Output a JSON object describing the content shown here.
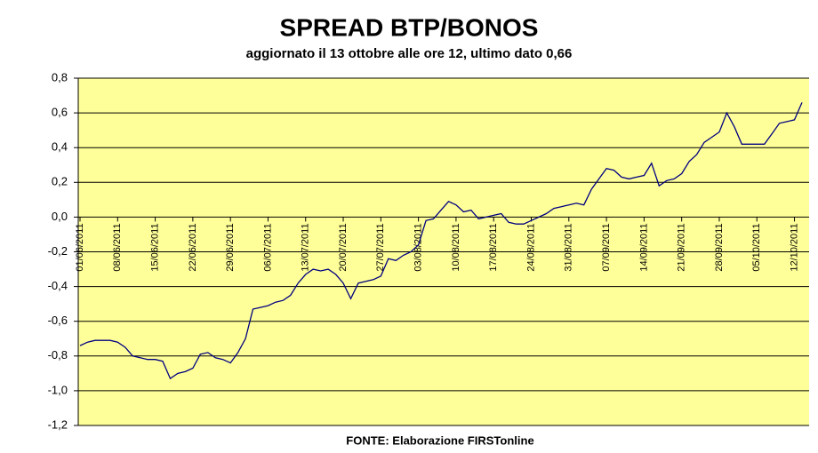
{
  "chart_data": {
    "type": "line",
    "title": "SPREAD BTP/BONOS",
    "subtitle": "aggiornato il 13 ottobre alle ore 12, ultimo dato 0,66",
    "source": "FONTE: Elaborazione FIRSTonline",
    "categories": [
      "01/06/2011",
      null,
      null,
      null,
      null,
      "08/06/2011",
      null,
      null,
      null,
      null,
      "15/06/2011",
      null,
      null,
      null,
      null,
      "22/06/2011",
      null,
      null,
      null,
      null,
      "29/06/2011",
      null,
      null,
      null,
      null,
      "06/07/2011",
      null,
      null,
      null,
      null,
      "13/07/2011",
      null,
      null,
      null,
      null,
      "20/07/2011",
      null,
      null,
      null,
      null,
      "27/07/2011",
      null,
      null,
      null,
      null,
      "03/08/2011",
      null,
      null,
      null,
      null,
      "10/08/2011",
      null,
      null,
      null,
      null,
      "17/08/2011",
      null,
      null,
      null,
      null,
      "24/08/2011",
      null,
      null,
      null,
      null,
      "31/08/2011",
      null,
      null,
      null,
      null,
      "07/09/2011",
      null,
      null,
      null,
      null,
      "14/09/2011",
      null,
      null,
      null,
      null,
      "21/09/2011",
      null,
      null,
      null,
      null,
      "28/09/2011",
      null,
      null,
      null,
      null,
      "05/10/2011",
      null,
      null,
      null,
      null,
      "12/10/2011",
      null
    ],
    "series": [
      {
        "color": "#000080",
        "values": [
          -0.74,
          -0.72,
          -0.71,
          -0.71,
          -0.71,
          -0.72,
          -0.75,
          -0.8,
          -0.81,
          -0.82,
          -0.82,
          -0.83,
          -0.93,
          -0.9,
          -0.89,
          -0.87,
          -0.79,
          -0.78,
          -0.81,
          -0.82,
          -0.84,
          -0.78,
          -0.7,
          -0.53,
          -0.52,
          -0.51,
          -0.49,
          -0.48,
          -0.45,
          -0.38,
          -0.33,
          -0.3,
          -0.31,
          -0.3,
          -0.33,
          -0.38,
          -0.47,
          -0.38,
          -0.37,
          -0.36,
          -0.34,
          -0.24,
          -0.25,
          -0.22,
          -0.2,
          -0.16,
          -0.02,
          -0.01,
          0.04,
          0.09,
          0.07,
          0.03,
          0.04,
          -0.01,
          0.0,
          0.01,
          0.02,
          -0.03,
          -0.04,
          -0.04,
          -0.02,
          0.0,
          0.02,
          0.05,
          0.06,
          0.07,
          0.08,
          0.07,
          0.16,
          0.22,
          0.28,
          0.27,
          0.23,
          0.22,
          0.23,
          0.24,
          0.31,
          0.18,
          0.21,
          0.22,
          0.25,
          0.32,
          0.36,
          0.43,
          0.46,
          0.49,
          0.6,
          0.52,
          0.42,
          0.42,
          0.42,
          0.42,
          0.48,
          0.54,
          0.55,
          0.56,
          0.66
        ]
      }
    ],
    "ylim": [
      -1.2,
      0.8
    ],
    "yticks": [
      {
        "value": -1.2,
        "label": "-1,2"
      },
      {
        "value": -1.0,
        "label": "-1,0"
      },
      {
        "value": -0.8,
        "label": "-0,8"
      },
      {
        "value": -0.6,
        "label": "-0,6"
      },
      {
        "value": -0.4,
        "label": "-0,4"
      },
      {
        "value": -0.2,
        "label": "-0,2"
      },
      {
        "value": 0.0,
        "label": "0,0"
      },
      {
        "value": 0.2,
        "label": "0,2"
      },
      {
        "value": 0.4,
        "label": "0,4"
      },
      {
        "value": 0.6,
        "label": "0,6"
      },
      {
        "value": 0.8,
        "label": "0,8"
      }
    ],
    "grid": true,
    "background": "#ffff99"
  }
}
